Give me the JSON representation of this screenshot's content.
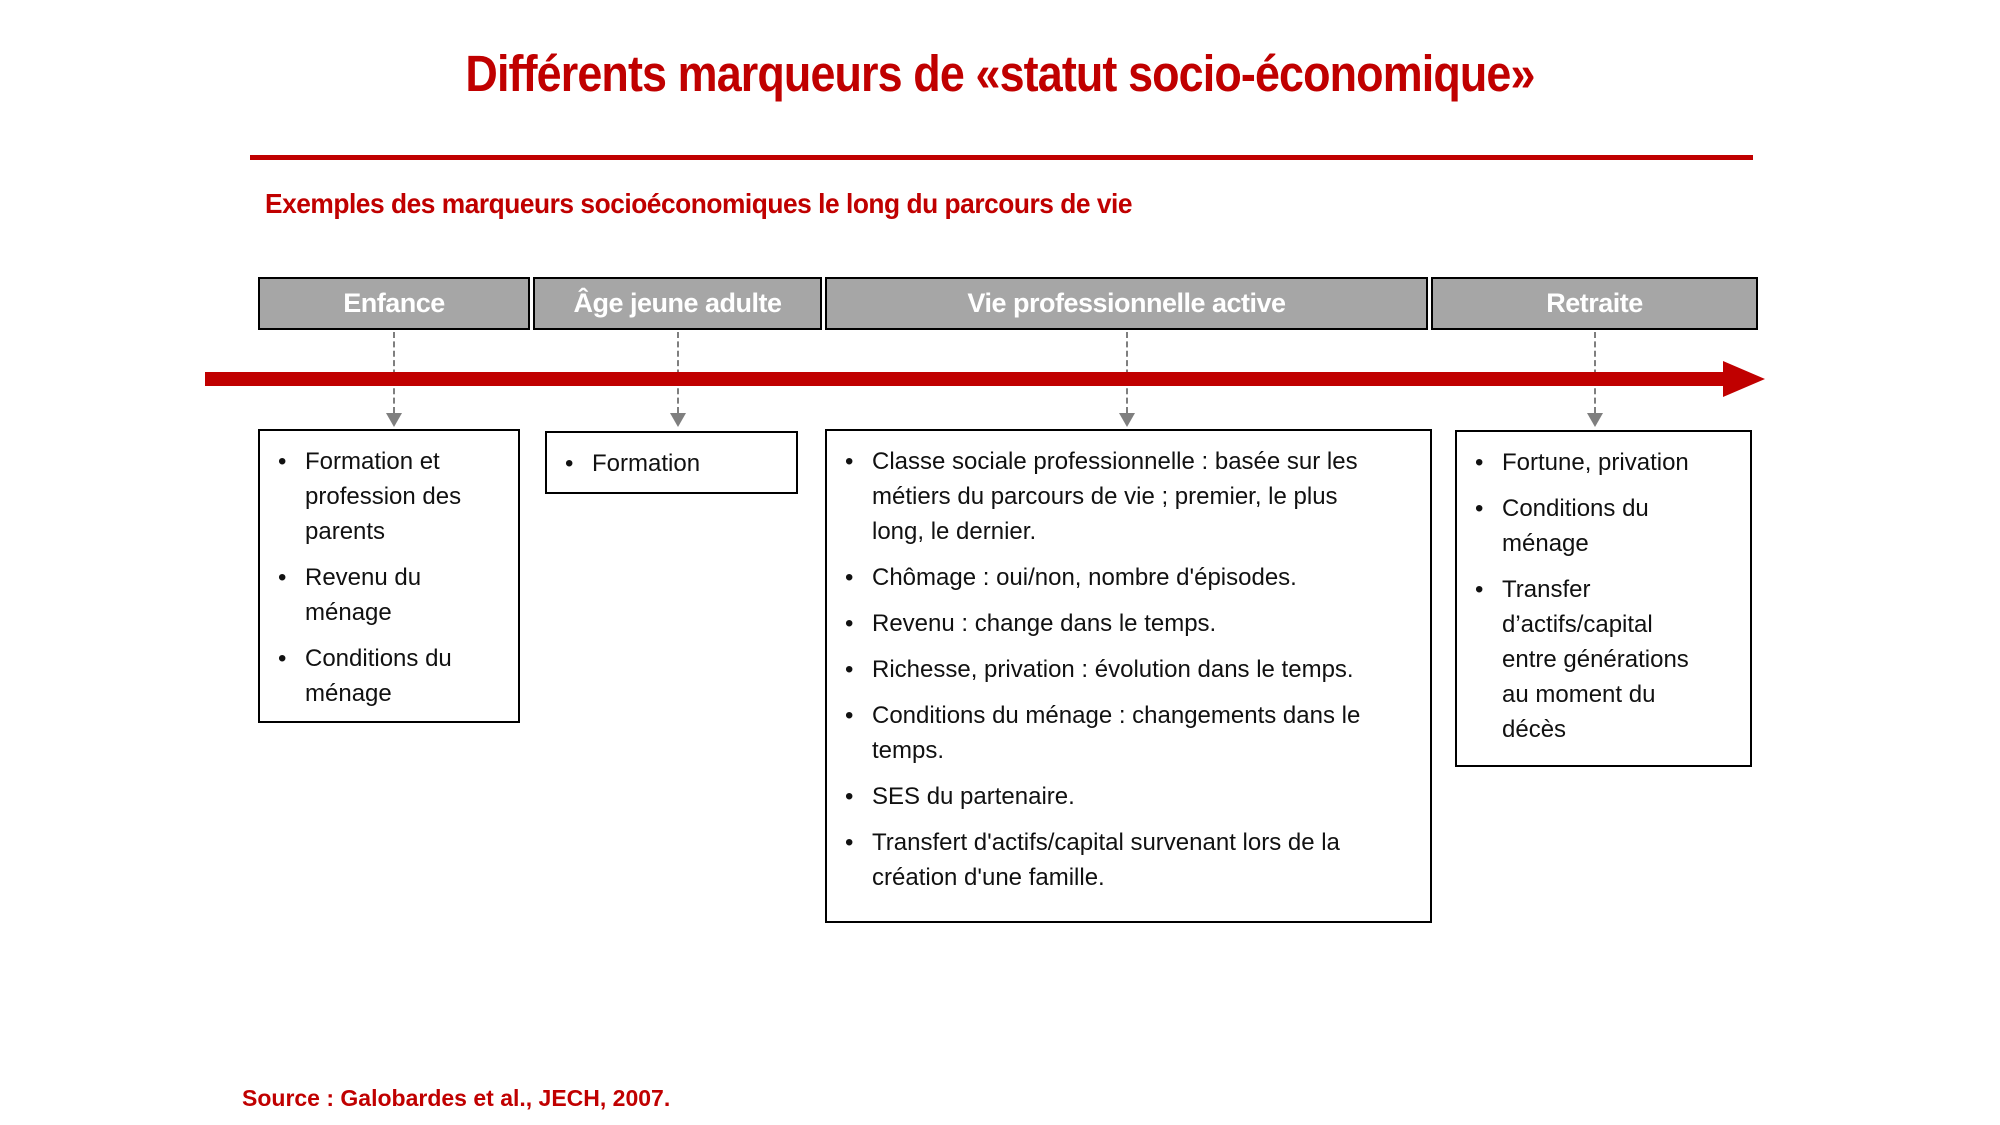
{
  "slide": {
    "title": "Différents marqueurs de «statut socio-économique»",
    "subtitle": "Exemples des marqueurs socioéconomiques le long du parcours de vie",
    "source": "Source : Galobardes et al., JECH, 2007."
  },
  "colors": {
    "accent_red": "#C00000",
    "header_gray": "#A6A6A6",
    "connector_gray": "#7f7f7f"
  },
  "timeline": {
    "stages": [
      {
        "label": "Enfance",
        "items": [
          "Formation et\nprofession des\nparents",
          "Revenu du\nménage",
          "Conditions du\nménage"
        ]
      },
      {
        "label": "Âge jeune adulte",
        "items": [
          "Formation"
        ]
      },
      {
        "label": "Vie professionnelle active",
        "items": [
          "Classe sociale professionnelle : basée sur les\nmétiers du parcours de vie ; premier, le plus\nlong, le dernier.",
          "Chômage : oui/non, nombre d'épisodes.",
          "Revenu : change dans le temps.",
          "Richesse, privation : évolution dans le temps.",
          "Conditions du ménage : changements dans le\ntemps.",
          "SES du partenaire.",
          "Transfert d'actifs/capital survenant lors de la\ncréation d'une famille."
        ]
      },
      {
        "label": "Retraite",
        "items": [
          "Fortune, privation",
          "Conditions du\nménage",
          "Transfer\nd’actifs/capital\nentre générations\nau moment du\ndécès"
        ]
      }
    ]
  }
}
